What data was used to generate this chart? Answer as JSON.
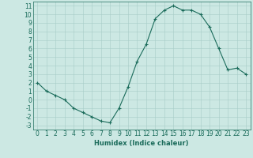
{
  "x": [
    0,
    1,
    2,
    3,
    4,
    5,
    6,
    7,
    8,
    9,
    10,
    11,
    12,
    13,
    14,
    15,
    16,
    17,
    18,
    19,
    20,
    21,
    22,
    23
  ],
  "y": [
    2,
    1,
    0.5,
    0,
    -1,
    -1.5,
    -2,
    -2.5,
    -2.7,
    -1,
    1.5,
    4.5,
    6.5,
    9.5,
    10.5,
    11,
    10.5,
    10.5,
    10,
    8.5,
    6,
    3.5,
    3.7,
    3
  ],
  "line_color": "#1a6b5a",
  "marker": "+",
  "marker_size": 3,
  "bg_color": "#cce8e3",
  "grid_color": "#a8ccc8",
  "xlabel": "Humidex (Indice chaleur)",
  "xlabel_fontsize": 6,
  "tick_fontsize": 5.5,
  "ylim": [
    -3.5,
    11.5
  ],
  "yticks": [
    -3,
    -2,
    -1,
    0,
    1,
    2,
    3,
    4,
    5,
    6,
    7,
    8,
    9,
    10,
    11
  ],
  "xlim": [
    -0.5,
    23.5
  ],
  "xticks": [
    0,
    1,
    2,
    3,
    4,
    5,
    6,
    7,
    8,
    9,
    10,
    11,
    12,
    13,
    14,
    15,
    16,
    17,
    18,
    19,
    20,
    21,
    22,
    23
  ]
}
